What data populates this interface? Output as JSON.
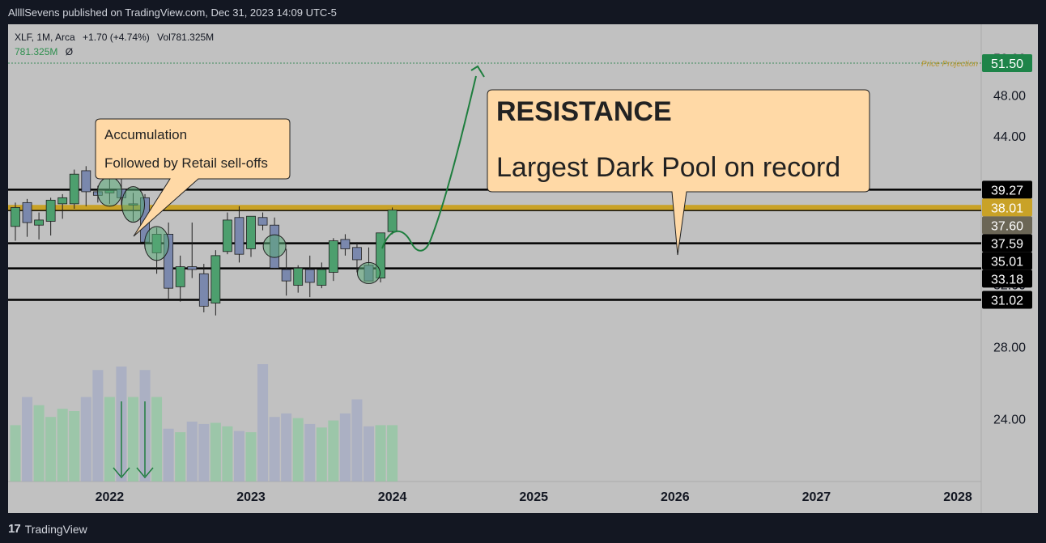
{
  "header": {
    "published": "AllllSevens published on TradingView.com, Dec 31, 2023 14:09 UTC-5"
  },
  "legend": {
    "symbol": "XLF, 1M, Arca",
    "change": "+1.70 (+4.74%)",
    "volume": "Vol781.325M",
    "volume_value": "781.325M",
    "volume_extra": "Ø"
  },
  "footer": {
    "brand": "TradingView",
    "logo_mark": "17"
  },
  "colors": {
    "up": "#4d9f6e",
    "down": "#7a88ad",
    "resistance": "#c9a227",
    "callout_bg": "#ffd9a6",
    "arrow": "#1e7e3e"
  },
  "annotations": {
    "accumulation_line1": "Accumulation",
    "accumulation_line2": "Followed by Retail sell-offs",
    "resistance_title": "RESISTANCE",
    "resistance_sub": "Largest Dark Pool on record",
    "price_projection_label": "Price Projection"
  },
  "chart_data": {
    "type": "candlestick",
    "title": "XLF, 1M, Arca",
    "x_tick_labels": [
      "2022",
      "2023",
      "2024",
      "2025",
      "2026",
      "2027",
      "2028"
    ],
    "y_tick_labels": [
      "52.00",
      "48.00",
      "44.00",
      "32.00",
      "28.00",
      "24.00"
    ],
    "y_scale": "log",
    "ylim": [
      21.5,
      53.5
    ],
    "price_labels": [
      {
        "value": "51.50",
        "style": "green"
      },
      {
        "value": "39.27",
        "style": "dark"
      },
      {
        "value": "38.01",
        "style": "gold"
      },
      {
        "value": "37.60",
        "style": "gray"
      },
      {
        "value": "37.59",
        "style": "dark"
      },
      {
        "value": "35.01",
        "style": "dark"
      },
      {
        "value": "33.18",
        "style": "dark"
      },
      {
        "value": "31.02",
        "style": "dark"
      }
    ],
    "horizontal_levels": [
      39.27,
      37.59,
      35.01,
      33.18,
      31.02
    ],
    "resistance_band": [
      37.6,
      38.01
    ],
    "price_projection": 51.5,
    "candles": [
      {
        "o": 36.3,
        "h": 38.2,
        "l": 35.2,
        "c": 37.8
      },
      {
        "o": 38.2,
        "h": 38.5,
        "l": 35.5,
        "c": 36.6
      },
      {
        "o": 36.4,
        "h": 37.4,
        "l": 35.3,
        "c": 36.8
      },
      {
        "o": 36.7,
        "h": 38.6,
        "l": 35.6,
        "c": 38.4
      },
      {
        "o": 38.1,
        "h": 38.9,
        "l": 36.9,
        "c": 38.6
      },
      {
        "o": 38.1,
        "h": 41.0,
        "l": 37.7,
        "c": 40.6
      },
      {
        "o": 40.9,
        "h": 41.3,
        "l": 37.9,
        "c": 39.1
      },
      {
        "o": 39.1,
        "h": 39.6,
        "l": 38.2,
        "c": 38.8
      },
      {
        "o": 39.0,
        "h": 41.7,
        "l": 38.1,
        "c": 39.2
      },
      {
        "o": 39.3,
        "h": 41.4,
        "l": 38.0,
        "c": 38.6
      },
      {
        "o": 38.0,
        "h": 39.0,
        "l": 36.7,
        "c": 38.1
      },
      {
        "o": 38.6,
        "h": 38.9,
        "l": 34.6,
        "c": 35.1
      },
      {
        "o": 34.3,
        "h": 36.2,
        "l": 32.8,
        "c": 35.7
      },
      {
        "o": 35.7,
        "h": 36.6,
        "l": 31.1,
        "c": 31.8
      },
      {
        "o": 31.9,
        "h": 34.1,
        "l": 30.9,
        "c": 33.3
      },
      {
        "o": 33.3,
        "h": 36.6,
        "l": 32.5,
        "c": 33.1
      },
      {
        "o": 32.8,
        "h": 33.5,
        "l": 30.2,
        "c": 30.6
      },
      {
        "o": 30.8,
        "h": 34.5,
        "l": 30.0,
        "c": 34.1
      },
      {
        "o": 34.4,
        "h": 37.4,
        "l": 34.2,
        "c": 36.8
      },
      {
        "o": 37.0,
        "h": 37.9,
        "l": 33.6,
        "c": 34.2
      },
      {
        "o": 34.6,
        "h": 37.0,
        "l": 34.0,
        "c": 37.1
      },
      {
        "o": 37.0,
        "h": 37.4,
        "l": 36.0,
        "c": 36.4
      },
      {
        "o": 36.4,
        "h": 37.0,
        "l": 33.1,
        "c": 33.2
      },
      {
        "o": 33.1,
        "h": 34.6,
        "l": 31.3,
        "c": 32.3
      },
      {
        "o": 32.0,
        "h": 33.4,
        "l": 31.5,
        "c": 33.2
      },
      {
        "o": 33.1,
        "h": 34.1,
        "l": 31.2,
        "c": 32.2
      },
      {
        "o": 32.0,
        "h": 33.6,
        "l": 31.8,
        "c": 33.1
      },
      {
        "o": 32.9,
        "h": 35.4,
        "l": 32.3,
        "c": 35.2
      },
      {
        "o": 35.3,
        "h": 35.7,
        "l": 34.1,
        "c": 34.6
      },
      {
        "o": 34.7,
        "h": 35.1,
        "l": 32.9,
        "c": 33.8
      },
      {
        "o": 33.4,
        "h": 34.7,
        "l": 32.3,
        "c": 32.3
      },
      {
        "o": 32.5,
        "h": 35.8,
        "l": 32.2,
        "c": 35.8
      },
      {
        "o": 35.9,
        "h": 37.8,
        "l": 35.7,
        "c": 37.6
      }
    ],
    "volume_relative": [
      0.48,
      0.72,
      0.65,
      0.55,
      0.62,
      0.6,
      0.72,
      0.95,
      0.72,
      0.98,
      0.72,
      0.95,
      0.72,
      0.45,
      0.42,
      0.51,
      0.49,
      0.5,
      0.47,
      0.43,
      0.42,
      1.0,
      0.55,
      0.58,
      0.54,
      0.49,
      0.46,
      0.52,
      0.58,
      0.7,
      0.47,
      0.48,
      0.48
    ],
    "circled_candles": [
      8,
      10,
      12,
      22,
      30
    ]
  }
}
